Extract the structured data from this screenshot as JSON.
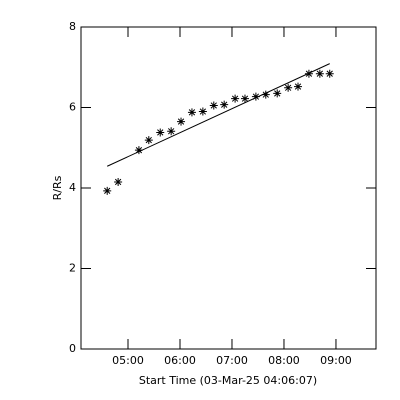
{
  "chart_data": {
    "type": "scatter",
    "x_label": "Start Time (03-Mar-25 04:06:07)",
    "y_label": "R/Rs",
    "color": "#000000",
    "x": [
      4.6,
      4.81,
      5.21,
      5.4,
      5.62,
      5.83,
      6.02,
      6.23,
      6.44,
      6.65,
      6.85,
      7.06,
      7.25,
      7.46,
      7.65,
      7.87,
      8.08,
      8.27,
      8.48,
      8.69,
      8.88
    ],
    "values": [
      3.93,
      4.15,
      4.94,
      5.19,
      5.38,
      5.41,
      5.65,
      5.88,
      5.9,
      6.05,
      6.07,
      6.22,
      6.22,
      6.27,
      6.32,
      6.35,
      6.49,
      6.52,
      6.84,
      6.84,
      6.84
    ],
    "fit": {
      "x": [
        4.6,
        8.88
      ],
      "values": [
        4.54,
        7.09
      ]
    },
    "xlim": [
      4.096,
      9.77
    ],
    "xticks": [
      {
        "value": 5,
        "label": "05:00"
      },
      {
        "value": 6,
        "label": "06:00"
      },
      {
        "value": 7,
        "label": "07:00"
      },
      {
        "value": 8,
        "label": "08:00"
      },
      {
        "value": 9,
        "label": "09:00"
      }
    ],
    "ylim": [
      0,
      8
    ],
    "yticks": [
      0,
      2,
      4,
      6,
      8
    ]
  }
}
